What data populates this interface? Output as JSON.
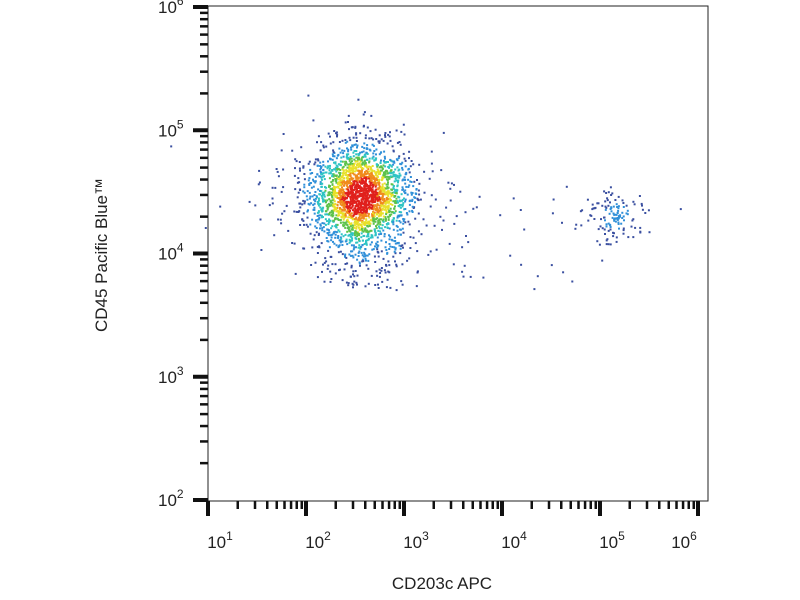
{
  "chart_data": {
    "type": "scatter",
    "subtype": "density-dot-plot",
    "xlabel": "CD203c APC",
    "ylabel": "CD45 Pacific Blue™",
    "x_scale": "log",
    "y_scale": "log",
    "xlim": [
      10,
      1000000
    ],
    "ylim": [
      100,
      1000000
    ],
    "x_ticks": [
      {
        "base": "10",
        "exp": "1"
      },
      {
        "base": "10",
        "exp": "2"
      },
      {
        "base": "10",
        "exp": "3"
      },
      {
        "base": "10",
        "exp": "4"
      },
      {
        "base": "10",
        "exp": "5"
      },
      {
        "base": "10",
        "exp": "6"
      }
    ],
    "y_ticks": [
      {
        "base": "10",
        "exp": "2"
      },
      {
        "base": "10",
        "exp": "3"
      },
      {
        "base": "10",
        "exp": "4"
      },
      {
        "base": "10",
        "exp": "5"
      },
      {
        "base": "10",
        "exp": "6"
      }
    ],
    "grid": false,
    "colormap": [
      "#3a4fa0",
      "#2f8fd8",
      "#2ec4c4",
      "#5cc24a",
      "#e8e02a",
      "#f08a1c",
      "#e0201c"
    ],
    "clusters": [
      {
        "center_x": 350,
        "center_y": 32000,
        "spread_x_decades": 0.25,
        "spread_y_decades": 0.2,
        "min_y": 5000,
        "count": 2600
      },
      {
        "center_x": 130000,
        "center_y": 21000,
        "spread_x_decades": 0.15,
        "spread_y_decades": 0.12,
        "count": 130
      }
    ]
  }
}
